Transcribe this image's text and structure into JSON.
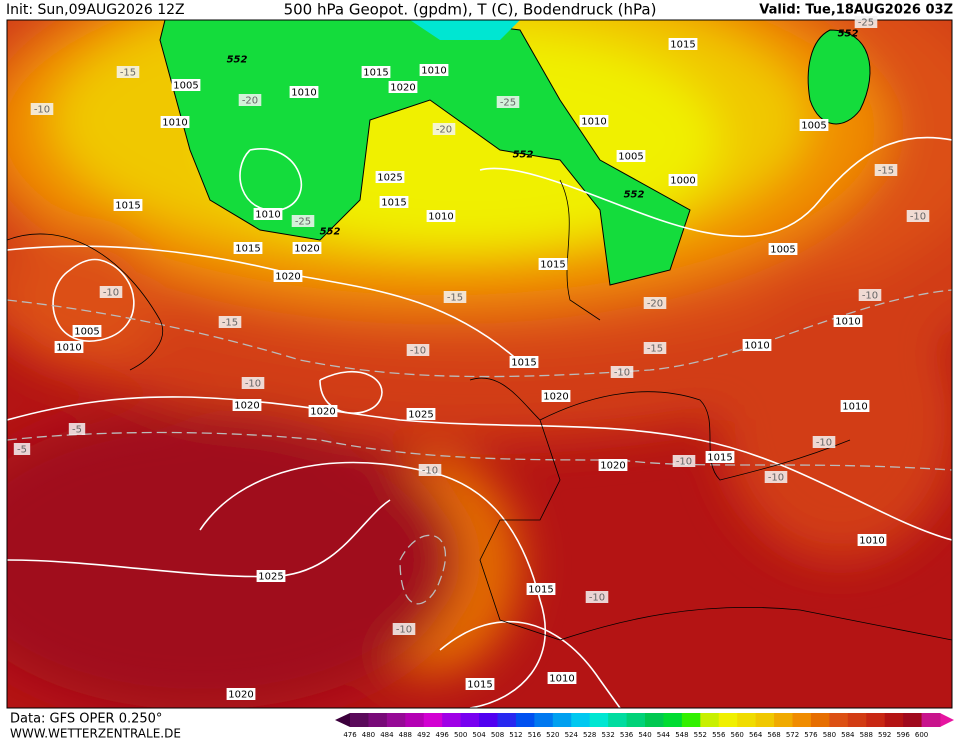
{
  "header": {
    "init": "Init: Sun,09AUG2026 12Z",
    "title": "500 hPa Geopot. (gpdm), T (C), Bodendruck (hPa)",
    "valid": "Valid: Tue,18AUG2026 03Z"
  },
  "footer": {
    "data_source": "Data: GFS OPER 0.250°",
    "website": "WWW.WETTERZENTRALE.DE"
  },
  "colorbar": {
    "levels": [
      476,
      480,
      484,
      488,
      492,
      496,
      500,
      504,
      508,
      512,
      516,
      520,
      524,
      528,
      532,
      536,
      540,
      544,
      548,
      552,
      556,
      560,
      564,
      568,
      572,
      576,
      580,
      584,
      588,
      592,
      596,
      600
    ],
    "colors": [
      "#5a0a5a",
      "#780a78",
      "#960a96",
      "#b400b4",
      "#d200d2",
      "#a000e6",
      "#7800f0",
      "#5000f0",
      "#2828f0",
      "#0050f0",
      "#0078f0",
      "#00a0f0",
      "#00c8f0",
      "#00e6d2",
      "#00dca0",
      "#00d278",
      "#00c850",
      "#00dc32",
      "#32f000",
      "#c8f000",
      "#f0f000",
      "#f0dc00",
      "#f0c800",
      "#f0aa00",
      "#f08c00",
      "#e66e00",
      "#dc5014",
      "#d23c14",
      "#c82814",
      "#b41414",
      "#a00a1e",
      "#c8148c"
    ]
  },
  "map_labels": [
    "1015",
    "552",
    "552",
    "1015",
    "1010",
    "1020",
    "1005",
    "1010",
    "-15",
    "-10",
    "1010",
    "-20",
    "-25",
    "-20",
    "1010",
    "552",
    "1005",
    "1025",
    "1000",
    "552",
    "1005",
    "-15",
    "1015",
    "1015",
    "1010",
    "-25",
    "552",
    "1010",
    "-10",
    "1015",
    "1020",
    "1005",
    "1015",
    "1020",
    "-10",
    "-15",
    "-20",
    "-10",
    "1005",
    "-15",
    "1010",
    "1010",
    "-10",
    "-15",
    "1010",
    "1015",
    "-10",
    "-10",
    "1020",
    "1020",
    "1020",
    "1025",
    "1010",
    "-5",
    "-10",
    "-5",
    "1015",
    "-10",
    "1020",
    "-10",
    "-10",
    "1010",
    "1025",
    "1015",
    "-10",
    "-10",
    "1010",
    "1015",
    "1020",
    "-25"
  ]
}
